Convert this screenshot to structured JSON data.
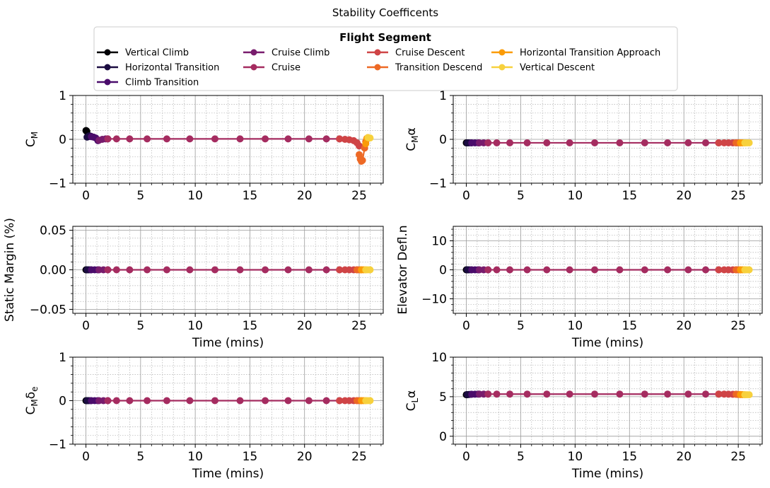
{
  "figure": {
    "title": "Stability Coefficents"
  },
  "legend": {
    "title": "Flight Segment",
    "entries": [
      {
        "label": "Vertical Climb",
        "color": "#000004"
      },
      {
        "label": "Horizontal Transition",
        "color": "#1b0c41"
      },
      {
        "label": "Climb Transition",
        "color": "#4a0c6b"
      },
      {
        "label": "Cruise Climb",
        "color": "#781c6d"
      },
      {
        "label": "Cruise",
        "color": "#a52c60"
      },
      {
        "label": "Cruise Descent",
        "color": "#cf4446"
      },
      {
        "label": "Transition Descend",
        "color": "#ed6925"
      },
      {
        "label": "Horizontal Transition Approach",
        "color": "#fb9b06"
      },
      {
        "label": "Vertical Descent",
        "color": "#f7d13d"
      }
    ]
  },
  "chart_data": [
    {
      "type": "line",
      "ylabel": "C_M",
      "xlabel": "",
      "xlim": [
        -1.2,
        27.2
      ],
      "ylim": [
        -1,
        1
      ],
      "xticks": [
        "0",
        "5",
        "10",
        "15",
        "20",
        "25"
      ],
      "yticks": [
        "−1",
        "0",
        "1"
      ],
      "grid": true,
      "series": [
        {
          "segment": 0,
          "x": [
            0.0,
            0.02,
            0.05,
            0.08
          ],
          "y": [
            0.2,
            0.2,
            0.19,
            0.18
          ]
        },
        {
          "segment": 1,
          "x": [
            0.1,
            0.2,
            0.3,
            0.45
          ],
          "y": [
            0.05,
            0.06,
            0.08,
            0.07
          ]
        },
        {
          "segment": 2,
          "x": [
            0.5,
            0.7,
            0.9,
            1.1
          ],
          "y": [
            0.06,
            0.05,
            0.03,
            -0.03
          ]
        },
        {
          "segment": 3,
          "x": [
            1.2,
            1.5,
            1.8,
            2.0
          ],
          "y": [
            -0.02,
            0.0,
            0.01,
            0.01
          ]
        },
        {
          "segment": 4,
          "x": [
            2.0,
            2.8,
            4.0,
            5.6,
            7.4,
            9.5,
            11.8,
            14.1,
            16.4,
            18.5,
            20.4,
            22.0,
            23.2
          ],
          "y": [
            0.01,
            0.01,
            0.01,
            0.01,
            0.01,
            0.01,
            0.01,
            0.01,
            0.01,
            0.01,
            0.01,
            0.01,
            0.01
          ]
        },
        {
          "segment": 5,
          "x": [
            23.2,
            23.7,
            24.1,
            24.5,
            24.8,
            25.0
          ],
          "y": [
            0.01,
            0.0,
            -0.01,
            -0.03,
            -0.08,
            -0.15
          ]
        },
        {
          "segment": 6,
          "x": [
            25.0,
            25.1,
            25.2,
            25.3,
            25.5,
            25.6,
            25.7
          ],
          "y": [
            -0.35,
            -0.45,
            -0.5,
            -0.48,
            -0.2,
            -0.05,
            0.02
          ]
        },
        {
          "segment": 7,
          "x": [
            25.6,
            25.7,
            25.8
          ],
          "y": [
            -0.1,
            0.02,
            0.04
          ]
        },
        {
          "segment": 8,
          "x": [
            25.8,
            25.9,
            26.0
          ],
          "y": [
            0.04,
            0.03,
            0.03
          ]
        }
      ]
    },
    {
      "type": "line",
      "ylabel": "C_Mα",
      "xlabel": "",
      "xlim": [
        -1.2,
        27.2
      ],
      "ylim": [
        -1,
        1
      ],
      "xticks": [
        "0",
        "5",
        "10",
        "15",
        "20",
        "25"
      ],
      "yticks": [
        "−1",
        "0",
        "1"
      ],
      "grid": true,
      "series": [
        {
          "segment": 0,
          "x": [
            0.0,
            0.05,
            0.1
          ],
          "y": [
            -0.08,
            -0.08,
            -0.08
          ]
        },
        {
          "segment": 1,
          "x": [
            0.1,
            0.25,
            0.45
          ],
          "y": [
            -0.08,
            -0.08,
            -0.08
          ]
        },
        {
          "segment": 2,
          "x": [
            0.5,
            0.8,
            1.1
          ],
          "y": [
            -0.08,
            -0.08,
            -0.08
          ]
        },
        {
          "segment": 3,
          "x": [
            1.2,
            1.6,
            2.0
          ],
          "y": [
            -0.08,
            -0.08,
            -0.08
          ]
        },
        {
          "segment": 4,
          "x": [
            2.0,
            2.8,
            4.0,
            5.6,
            7.4,
            9.5,
            11.8,
            14.1,
            16.4,
            18.5,
            20.4,
            22.0,
            23.2
          ],
          "y": [
            -0.08,
            -0.08,
            -0.08,
            -0.08,
            -0.08,
            -0.08,
            -0.08,
            -0.08,
            -0.08,
            -0.08,
            -0.08,
            -0.08,
            -0.08
          ]
        },
        {
          "segment": 5,
          "x": [
            23.2,
            23.7,
            24.1,
            24.5,
            24.8
          ],
          "y": [
            -0.08,
            -0.08,
            -0.08,
            -0.08,
            -0.08
          ]
        },
        {
          "segment": 6,
          "x": [
            24.8,
            25.0,
            25.2
          ],
          "y": [
            -0.08,
            -0.08,
            -0.08
          ]
        },
        {
          "segment": 7,
          "x": [
            25.2,
            25.4,
            25.6
          ],
          "y": [
            -0.08,
            -0.08,
            -0.08
          ]
        },
        {
          "segment": 8,
          "x": [
            25.6,
            25.8,
            26.0
          ],
          "y": [
            -0.08,
            -0.08,
            -0.08
          ]
        }
      ]
    },
    {
      "type": "line",
      "ylabel": "Static Margin (%)",
      "xlabel": "Time (mins)",
      "xlim": [
        -1.2,
        27.2
      ],
      "ylim": [
        -0.055,
        0.055
      ],
      "xticks": [
        "0",
        "5",
        "10",
        "15",
        "20",
        "25"
      ],
      "yticks": [
        "−0.05",
        "0.00",
        "0.05"
      ],
      "grid": true,
      "series": [
        {
          "segment": 0,
          "x": [
            0.0,
            0.05,
            0.1
          ],
          "y": [
            0,
            0,
            0
          ]
        },
        {
          "segment": 1,
          "x": [
            0.1,
            0.25,
            0.45
          ],
          "y": [
            0,
            0,
            0
          ]
        },
        {
          "segment": 2,
          "x": [
            0.5,
            0.8,
            1.1
          ],
          "y": [
            0,
            0,
            0
          ]
        },
        {
          "segment": 3,
          "x": [
            1.2,
            1.6,
            2.0
          ],
          "y": [
            0,
            0,
            0
          ]
        },
        {
          "segment": 4,
          "x": [
            2.0,
            2.8,
            4.0,
            5.6,
            7.4,
            9.5,
            11.8,
            14.1,
            16.4,
            18.5,
            20.4,
            22.0,
            23.2
          ],
          "y": [
            0,
            0,
            0,
            0,
            0,
            0,
            0,
            0,
            0,
            0,
            0,
            0,
            0
          ]
        },
        {
          "segment": 5,
          "x": [
            23.2,
            23.7,
            24.1,
            24.5,
            24.8
          ],
          "y": [
            0,
            0,
            0,
            0,
            0
          ]
        },
        {
          "segment": 6,
          "x": [
            24.8,
            25.0,
            25.2
          ],
          "y": [
            0,
            0,
            0
          ]
        },
        {
          "segment": 7,
          "x": [
            25.2,
            25.4,
            25.6
          ],
          "y": [
            0,
            0,
            0
          ]
        },
        {
          "segment": 8,
          "x": [
            25.6,
            25.8,
            26.0
          ],
          "y": [
            0,
            0,
            0
          ]
        }
      ]
    },
    {
      "type": "line",
      "ylabel": "Elevator Defl.n",
      "xlabel": "Time (mins)",
      "xlim": [
        -1.2,
        27.2
      ],
      "ylim": [
        -15,
        15
      ],
      "xticks": [
        "0",
        "5",
        "10",
        "15",
        "20",
        "25"
      ],
      "yticks": [
        "−10",
        "0",
        "10"
      ],
      "grid": true,
      "series": [
        {
          "segment": 0,
          "x": [
            0.0,
            0.05,
            0.1
          ],
          "y": [
            0,
            0,
            0
          ]
        },
        {
          "segment": 1,
          "x": [
            0.1,
            0.25,
            0.45
          ],
          "y": [
            0,
            0,
            0
          ]
        },
        {
          "segment": 2,
          "x": [
            0.5,
            0.8,
            1.1
          ],
          "y": [
            0,
            0,
            0
          ]
        },
        {
          "segment": 3,
          "x": [
            1.2,
            1.6,
            2.0
          ],
          "y": [
            0,
            0,
            0
          ]
        },
        {
          "segment": 4,
          "x": [
            2.0,
            2.8,
            4.0,
            5.6,
            7.4,
            9.5,
            11.8,
            14.1,
            16.4,
            18.5,
            20.4,
            22.0,
            23.2
          ],
          "y": [
            0,
            0,
            0,
            0,
            0,
            0,
            0,
            0,
            0,
            0,
            0,
            0,
            0
          ]
        },
        {
          "segment": 5,
          "x": [
            23.2,
            23.7,
            24.1,
            24.5,
            24.8
          ],
          "y": [
            0,
            0,
            0,
            0,
            0
          ]
        },
        {
          "segment": 6,
          "x": [
            24.8,
            25.0,
            25.2
          ],
          "y": [
            0,
            0,
            0
          ]
        },
        {
          "segment": 7,
          "x": [
            25.2,
            25.4,
            25.6
          ],
          "y": [
            0,
            0,
            0
          ]
        },
        {
          "segment": 8,
          "x": [
            25.6,
            25.8,
            26.0
          ],
          "y": [
            0,
            0,
            0
          ]
        }
      ]
    },
    {
      "type": "line",
      "ylabel": "C_Mδe",
      "xlabel": "Time (mins)",
      "xlim": [
        -1.2,
        27.2
      ],
      "ylim": [
        -1,
        1
      ],
      "xticks": [
        "0",
        "5",
        "10",
        "15",
        "20",
        "25"
      ],
      "yticks": [
        "−1",
        "0",
        "1"
      ],
      "grid": true,
      "series": [
        {
          "segment": 0,
          "x": [
            0.0,
            0.05,
            0.1
          ],
          "y": [
            0,
            0,
            0
          ]
        },
        {
          "segment": 1,
          "x": [
            0.1,
            0.25,
            0.45
          ],
          "y": [
            0,
            0,
            0
          ]
        },
        {
          "segment": 2,
          "x": [
            0.5,
            0.8,
            1.1
          ],
          "y": [
            0,
            0,
            0
          ]
        },
        {
          "segment": 3,
          "x": [
            1.2,
            1.6,
            2.0
          ],
          "y": [
            0,
            0,
            0
          ]
        },
        {
          "segment": 4,
          "x": [
            2.0,
            2.8,
            4.0,
            5.6,
            7.4,
            9.5,
            11.8,
            14.1,
            16.4,
            18.5,
            20.4,
            22.0,
            23.2
          ],
          "y": [
            0,
            0,
            0,
            0,
            0,
            0,
            0,
            0,
            0,
            0,
            0,
            0,
            0
          ]
        },
        {
          "segment": 5,
          "x": [
            23.2,
            23.7,
            24.1,
            24.5,
            24.8
          ],
          "y": [
            0,
            0,
            0,
            0,
            0
          ]
        },
        {
          "segment": 6,
          "x": [
            24.8,
            25.0,
            25.2
          ],
          "y": [
            0,
            0,
            0
          ]
        },
        {
          "segment": 7,
          "x": [
            25.2,
            25.4,
            25.6
          ],
          "y": [
            0,
            0,
            0
          ]
        },
        {
          "segment": 8,
          "x": [
            25.6,
            25.8,
            26.0
          ],
          "y": [
            0,
            0,
            0
          ]
        }
      ]
    },
    {
      "type": "line",
      "ylabel": "C_Lα",
      "xlabel": "Time (mins)",
      "xlim": [
        -1.2,
        27.2
      ],
      "ylim": [
        -1,
        10
      ],
      "xticks": [
        "0",
        "5",
        "10",
        "15",
        "20",
        "25"
      ],
      "yticks": [
        "0",
        "5",
        "10"
      ],
      "grid": true,
      "series": [
        {
          "segment": 0,
          "x": [
            0.0,
            0.05,
            0.1
          ],
          "y": [
            5.25,
            5.25,
            5.25
          ]
        },
        {
          "segment": 1,
          "x": [
            0.1,
            0.25,
            0.45
          ],
          "y": [
            5.27,
            5.28,
            5.3
          ]
        },
        {
          "segment": 2,
          "x": [
            0.5,
            0.8,
            1.1
          ],
          "y": [
            5.3,
            5.32,
            5.33
          ]
        },
        {
          "segment": 3,
          "x": [
            1.2,
            1.6,
            2.0
          ],
          "y": [
            5.33,
            5.33,
            5.33
          ]
        },
        {
          "segment": 4,
          "x": [
            2.0,
            2.8,
            4.0,
            5.6,
            7.4,
            9.5,
            11.8,
            14.1,
            16.4,
            18.5,
            20.4,
            22.0,
            23.2
          ],
          "y": [
            5.33,
            5.33,
            5.33,
            5.33,
            5.33,
            5.33,
            5.33,
            5.33,
            5.33,
            5.33,
            5.33,
            5.33,
            5.33
          ]
        },
        {
          "segment": 5,
          "x": [
            23.2,
            23.7,
            24.1,
            24.5,
            24.8
          ],
          "y": [
            5.33,
            5.33,
            5.32,
            5.3,
            5.3
          ]
        },
        {
          "segment": 6,
          "x": [
            24.8,
            25.0,
            25.2
          ],
          "y": [
            5.3,
            5.28,
            5.27
          ]
        },
        {
          "segment": 7,
          "x": [
            25.2,
            25.4,
            25.6
          ],
          "y": [
            5.27,
            5.26,
            5.25
          ]
        },
        {
          "segment": 8,
          "x": [
            25.6,
            25.8,
            26.0
          ],
          "y": [
            5.25,
            5.25,
            5.25
          ]
        }
      ]
    }
  ]
}
